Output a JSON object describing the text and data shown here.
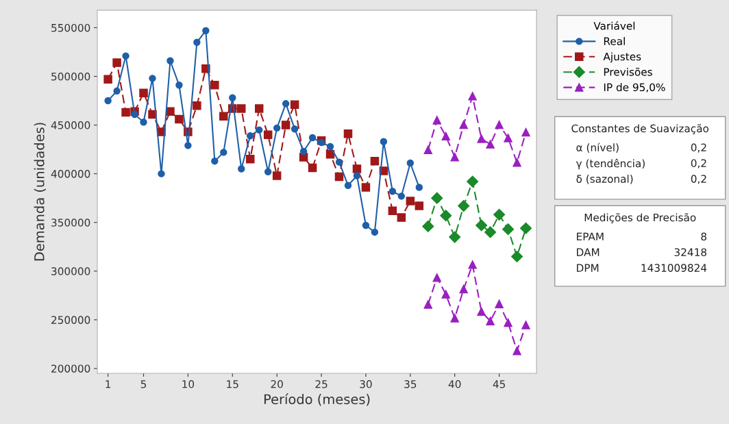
{
  "chart_data": {
    "type": "line",
    "xlabel": "Período (meses)",
    "ylabel": "Demanda (unidades)",
    "legend_title": "Variável",
    "legend": "right",
    "grid": false,
    "xlim": [
      -0.2,
      49.2
    ],
    "xticks": [
      1,
      5,
      10,
      15,
      20,
      25,
      30,
      35,
      40,
      45
    ],
    "ylim": [
      195000,
      568000
    ],
    "yticks": [
      200000,
      250000,
      300000,
      350000,
      400000,
      450000,
      500000,
      550000
    ],
    "series": [
      {
        "name": "Real",
        "color": "#1f5fa8",
        "marker": "circle",
        "line_style": "solid",
        "x": [
          1,
          2,
          3,
          4,
          5,
          6,
          7,
          8,
          9,
          10,
          11,
          12,
          13,
          14,
          15,
          16,
          17,
          18,
          19,
          20,
          21,
          22,
          23,
          24,
          25,
          26,
          27,
          28,
          29,
          30,
          31,
          32,
          33,
          34,
          35,
          36
        ],
        "values": [
          475000,
          485000,
          521000,
          461000,
          453000,
          498000,
          400000,
          516000,
          491000,
          429000,
          535000,
          547000,
          413000,
          422000,
          478000,
          405000,
          439000,
          445000,
          402000,
          447000,
          472000,
          446000,
          423000,
          437000,
          432000,
          428000,
          412000,
          388000,
          398000,
          347000,
          340000,
          433000,
          382000,
          377000,
          411000,
          386000
        ]
      },
      {
        "name": "Ajustes",
        "color": "#a01818",
        "marker": "square",
        "line_style": "dashed",
        "x": [
          1,
          2,
          3,
          4,
          5,
          6,
          7,
          8,
          9,
          10,
          11,
          12,
          13,
          14,
          15,
          16,
          17,
          18,
          19,
          20,
          21,
          22,
          23,
          24,
          25,
          26,
          27,
          28,
          29,
          30,
          31,
          32,
          33,
          34,
          35,
          36
        ],
        "values": [
          497000,
          514000,
          463000,
          464000,
          483000,
          461000,
          443000,
          464000,
          456000,
          443000,
          470000,
          508000,
          491000,
          459000,
          467000,
          467000,
          415000,
          467000,
          440000,
          398000,
          450000,
          471000,
          417000,
          406000,
          434000,
          420000,
          397000,
          441000,
          405000,
          386000,
          413000,
          403000,
          362000,
          355000,
          372000,
          367000
        ]
      },
      {
        "name": "Previsões",
        "color": "#1a8a2a",
        "marker": "diamond",
        "line_style": "dashed",
        "x": [
          37,
          38,
          39,
          40,
          41,
          42,
          43,
          44,
          45,
          46,
          47,
          48
        ],
        "values": [
          346000,
          375000,
          357000,
          335000,
          367000,
          392000,
          347000,
          340000,
          358000,
          343000,
          315000,
          344000
        ]
      },
      {
        "name": "IP de 95,0%",
        "color": "#9b1fc0",
        "marker": "triangle",
        "line_style": "dashed",
        "x": [
          37,
          38,
          39,
          40,
          41,
          42,
          43,
          44,
          45,
          46,
          47,
          48
        ],
        "values": [
          424500,
          455000,
          438600,
          417200,
          450400,
          479700,
          436000,
          430300,
          450400,
          436700,
          411600,
          442600
        ]
      },
      {
        "color": "#9b1fc0",
        "marker": "triangle",
        "line_style": "dashed",
        "x": [
          37,
          38,
          39,
          40,
          41,
          42,
          43,
          44,
          45,
          46,
          47,
          48
        ],
        "values": [
          265800,
          293300,
          276200,
          251700,
          281600,
          306700,
          258500,
          248700,
          266300,
          247000,
          218100,
          244700
        ]
      }
    ],
    "annotations": [
      "Constantes de Suavização",
      "α (nível)",
      "0,2",
      "γ (tendência)",
      "0,2",
      "δ (sazonal)",
      "0,2",
      "Medições de Precisão",
      "EPAM",
      "8",
      "DAM",
      "32418",
      "DPM",
      "1431009824"
    ]
  }
}
